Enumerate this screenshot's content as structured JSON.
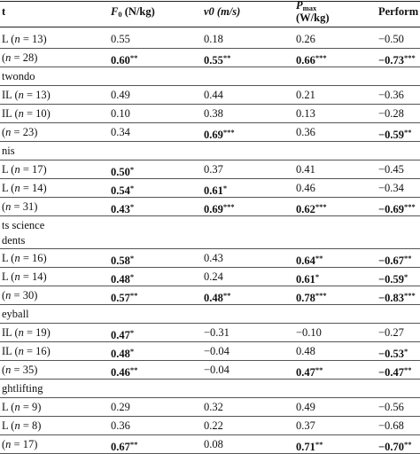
{
  "header": {
    "col_group": "t",
    "col_f0": "F",
    "col_f0_sub": "0",
    "col_f0_unit": " (N/kg)",
    "col_v0": "v0 (m/s)",
    "col_pmax": "P",
    "col_pmax_sub": "max",
    "col_pmax_unit": "(W/kg)",
    "col_perf": "Perform"
  },
  "rows": [
    {
      "kind": "data",
      "label": "L (n = 13)",
      "f0": "0.55",
      "f0s": "",
      "f0b": false,
      "v0": "0.18",
      "v0s": "",
      "v0b": false,
      "pm": "0.26",
      "pms": "",
      "pmb": false,
      "pf": "−0.50",
      "pfs": "",
      "pfb": false
    },
    {
      "kind": "data",
      "label": "(n = 28)",
      "f0": "0.60",
      "f0s": "**",
      "f0b": true,
      "v0": "0.55",
      "v0s": "**",
      "v0b": true,
      "pm": "0.66",
      "pms": "***",
      "pmb": true,
      "pf": "−0.73",
      "pfs": "***",
      "pfb": true
    },
    {
      "kind": "section",
      "label": "twondo"
    },
    {
      "kind": "data",
      "label": "IL (n = 13)",
      "f0": "0.49",
      "f0s": "",
      "f0b": false,
      "v0": "0.44",
      "v0s": "",
      "v0b": false,
      "pm": "0.21",
      "pms": "",
      "pmb": false,
      "pf": "−0.36",
      "pfs": "",
      "pfb": false
    },
    {
      "kind": "data",
      "label": "IL (n = 10)",
      "f0": "0.10",
      "f0s": "",
      "f0b": false,
      "v0": "0.38",
      "v0s": "",
      "v0b": false,
      "pm": "0.13",
      "pms": "",
      "pmb": false,
      "pf": "−0.28",
      "pfs": "",
      "pfb": false
    },
    {
      "kind": "data",
      "label": "(n = 23)",
      "f0": "0.34",
      "f0s": "",
      "f0b": false,
      "v0": "0.69",
      "v0s": "***",
      "v0b": true,
      "pm": "0.36",
      "pms": "",
      "pmb": false,
      "pf": "−0.59",
      "pfs": "**",
      "pfb": true
    },
    {
      "kind": "section",
      "label": "nis"
    },
    {
      "kind": "data",
      "label": "L (n = 17)",
      "f0": "0.50",
      "f0s": "*",
      "f0b": true,
      "v0": "0.37",
      "v0s": "",
      "v0b": false,
      "pm": "0.41",
      "pms": "",
      "pmb": false,
      "pf": "−0.45",
      "pfs": "",
      "pfb": false
    },
    {
      "kind": "data",
      "label": "L (n = 14)",
      "f0": "0.54",
      "f0s": "*",
      "f0b": true,
      "v0": "0.61",
      "v0s": "*",
      "v0b": true,
      "pm": "0.46",
      "pms": "",
      "pmb": false,
      "pf": "−0.34",
      "pfs": "",
      "pfb": false
    },
    {
      "kind": "data",
      "label": "(n = 31)",
      "f0": "0.43",
      "f0s": "*",
      "f0b": true,
      "v0": "0.69",
      "v0s": "***",
      "v0b": true,
      "pm": "0.62",
      "pms": "***",
      "pmb": true,
      "pf": "−0.69",
      "pfs": "***",
      "pfb": true
    },
    {
      "kind": "section2",
      "label": "ts science",
      "label2": "dents"
    },
    {
      "kind": "data",
      "label": "L (n = 16)",
      "f0": "0.58",
      "f0s": "*",
      "f0b": true,
      "v0": "0.43",
      "v0s": "",
      "v0b": false,
      "pm": "0.64",
      "pms": "**",
      "pmb": true,
      "pf": "−0.67",
      "pfs": "**",
      "pfb": true
    },
    {
      "kind": "data",
      "label": "L (n = 14)",
      "f0": "0.48",
      "f0s": "*",
      "f0b": true,
      "v0": "0.24",
      "v0s": "",
      "v0b": false,
      "pm": "0.61",
      "pms": "*",
      "pmb": true,
      "pf": "−0.59",
      "pfs": "*",
      "pfb": true
    },
    {
      "kind": "data",
      "label": "(n = 30)",
      "f0": "0.57",
      "f0s": "**",
      "f0b": true,
      "v0": "0.48",
      "v0s": "**",
      "v0b": true,
      "pm": "0.78",
      "pms": "***",
      "pmb": true,
      "pf": "−0.83",
      "pfs": "***",
      "pfb": true
    },
    {
      "kind": "section",
      "label": "eyball"
    },
    {
      "kind": "data",
      "label": "IL (n = 19)",
      "f0": "0.47",
      "f0s": "*",
      "f0b": true,
      "v0": "−0.31",
      "v0s": "",
      "v0b": false,
      "pm": "−0.10",
      "pms": "",
      "pmb": false,
      "pf": "−0.27",
      "pfs": "",
      "pfb": false
    },
    {
      "kind": "data",
      "label": "IL (n = 16)",
      "f0": "0.48",
      "f0s": "*",
      "f0b": true,
      "v0": "−0.04",
      "v0s": "",
      "v0b": false,
      "pm": "0.48",
      "pms": "",
      "pmb": false,
      "pf": "−0.53",
      "pfs": "*",
      "pfb": true
    },
    {
      "kind": "data",
      "label": "(n = 35)",
      "f0": "0.46",
      "f0s": "**",
      "f0b": true,
      "v0": "−0.04",
      "v0s": "",
      "v0b": false,
      "pm": "0.47",
      "pms": "**",
      "pmb": true,
      "pf": "−0.47",
      "pfs": "**",
      "pfb": true
    },
    {
      "kind": "section",
      "label": "ghtlifting"
    },
    {
      "kind": "data",
      "label": "L (n = 9)",
      "f0": "0.29",
      "f0s": "",
      "f0b": false,
      "v0": "0.32",
      "v0s": "",
      "v0b": false,
      "pm": "0.49",
      "pms": "",
      "pmb": false,
      "pf": "−0.56",
      "pfs": "",
      "pfb": false
    },
    {
      "kind": "data",
      "label": "L (n = 8)",
      "f0": "0.36",
      "f0s": "",
      "f0b": false,
      "v0": "0.22",
      "v0s": "",
      "v0b": false,
      "pm": "0.37",
      "pms": "",
      "pmb": false,
      "pf": "−0.68",
      "pfs": "",
      "pfb": false
    },
    {
      "kind": "data",
      "label": "(n = 17)",
      "f0": "0.67",
      "f0s": "**",
      "f0b": true,
      "v0": "0.08",
      "v0s": "",
      "v0b": false,
      "pm": "0.71",
      "pms": "**",
      "pmb": true,
      "pf": "−0.70",
      "pfs": "**",
      "pfb": true
    }
  ]
}
